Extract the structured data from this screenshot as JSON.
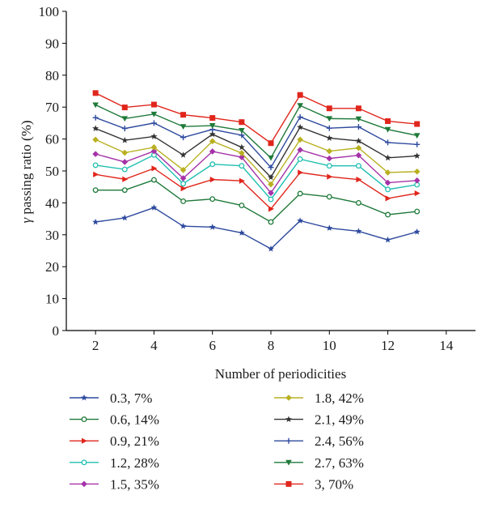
{
  "chart_data": {
    "type": "line",
    "title": "",
    "xlabel": "Number of periodicities",
    "ylabel": "γ passing ratio (%)",
    "xlim": [
      1,
      15
    ],
    "ylim": [
      0,
      100
    ],
    "xticks": [
      2,
      4,
      6,
      8,
      10,
      12,
      14
    ],
    "yticks": [
      0,
      10,
      20,
      30,
      40,
      50,
      60,
      70,
      80,
      90,
      100
    ],
    "grid": false,
    "legend_position": "bottom",
    "x": [
      2,
      3,
      4,
      5,
      6,
      7,
      8,
      9,
      10,
      11,
      12,
      13
    ],
    "series": [
      {
        "name": "0.3, 7%",
        "color": "#2e4a9e",
        "marker": "star",
        "values": [
          34,
          35.3,
          38.5,
          32.7,
          32.4,
          30.6,
          25.6,
          34.4,
          32.1,
          31.1,
          28.4,
          30.9
        ]
      },
      {
        "name": "0.6, 14%",
        "color": "#1f7a3a",
        "marker": "circle",
        "values": [
          44,
          44,
          47.2,
          40.5,
          41.2,
          39.2,
          34,
          42.9,
          41.9,
          40,
          36.3,
          37.3
        ]
      },
      {
        "name": "0.9, 21%",
        "color": "#e0261c",
        "marker": "triangle-right",
        "values": [
          48.9,
          47.4,
          50.8,
          44.5,
          47.3,
          46.9,
          38.1,
          49.5,
          48.2,
          47.3,
          41.4,
          43
        ]
      },
      {
        "name": "1.2, 28%",
        "color": "#1fbfb0",
        "marker": "circle",
        "values": [
          51.8,
          50.5,
          55,
          46,
          52.1,
          51.6,
          41.1,
          53.7,
          51.6,
          51.6,
          44.2,
          45.7
        ]
      },
      {
        "name": "1.5, 35%",
        "color": "#a532a8",
        "marker": "diamond",
        "values": [
          55.3,
          52.8,
          56.2,
          47.7,
          56.1,
          54.3,
          43.1,
          56.6,
          53.9,
          54.9,
          46.3,
          47
        ]
      },
      {
        "name": "1.8, 42%",
        "color": "#b8b020",
        "marker": "diamond",
        "values": [
          59.8,
          55.7,
          57.4,
          50.3,
          59.3,
          55.6,
          45.8,
          59.8,
          56.2,
          57.2,
          49.5,
          49.8
        ]
      },
      {
        "name": "2.1, 49%",
        "color": "#333333",
        "marker": "star",
        "values": [
          63.3,
          59.6,
          60.8,
          55,
          61.5,
          57.4,
          48,
          63.7,
          60.3,
          59.4,
          54.1,
          54.7
        ]
      },
      {
        "name": "2.4, 56%",
        "color": "#2e4a9e",
        "marker": "plus",
        "values": [
          66.7,
          63.3,
          65,
          60.5,
          63,
          61.2,
          51.1,
          66.9,
          63.4,
          63.8,
          58.9,
          58.3
        ]
      },
      {
        "name": "2.7, 63%",
        "color": "#1f7a3a",
        "marker": "triangle-down",
        "values": [
          70.7,
          66.4,
          67.8,
          63.9,
          64.2,
          62.7,
          54.1,
          70.5,
          66.4,
          66.3,
          63,
          61.1
        ]
      },
      {
        "name": "3, 70%",
        "color": "#e0261c",
        "marker": "square",
        "values": [
          74.4,
          69.9,
          70.8,
          67.6,
          66.6,
          65.3,
          58.7,
          73.8,
          69.6,
          69.6,
          65.6,
          64.7
        ]
      }
    ]
  }
}
